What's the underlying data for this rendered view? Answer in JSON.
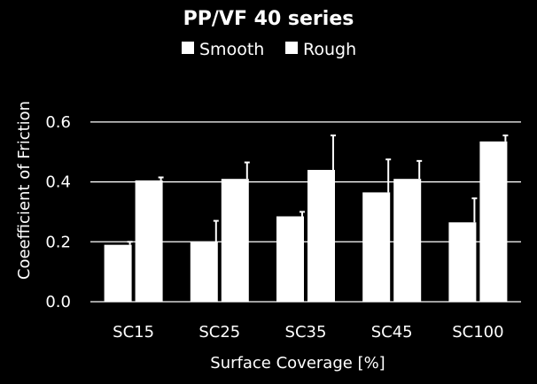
{
  "chart_data": {
    "type": "bar",
    "title": "PP/VF 40 series",
    "xlabel": "Surface Coverage [%]",
    "ylabel": "Coeefficient of Friction",
    "categories": [
      "SC15",
      "SC25",
      "SC35",
      "SC45",
      "SC100"
    ],
    "series": [
      {
        "name": "Smooth",
        "values": [
          0.19,
          0.2,
          0.285,
          0.365,
          0.265
        ],
        "errors": [
          0.01,
          0.07,
          0.015,
          0.11,
          0.08
        ]
      },
      {
        "name": "Rough",
        "values": [
          0.405,
          0.41,
          0.44,
          0.41,
          0.535
        ],
        "errors": [
          0.01,
          0.055,
          0.115,
          0.06,
          0.02
        ]
      }
    ],
    "ylim": [
      0,
      0.7
    ],
    "yticks": [
      "0.0",
      "0.2",
      "0.4",
      "0.6"
    ],
    "grid": true,
    "legend_position": "top",
    "colors": {
      "background": "#000000",
      "bars": "#ffffff",
      "text": "#ffffff",
      "grid": "#ffffff"
    }
  }
}
